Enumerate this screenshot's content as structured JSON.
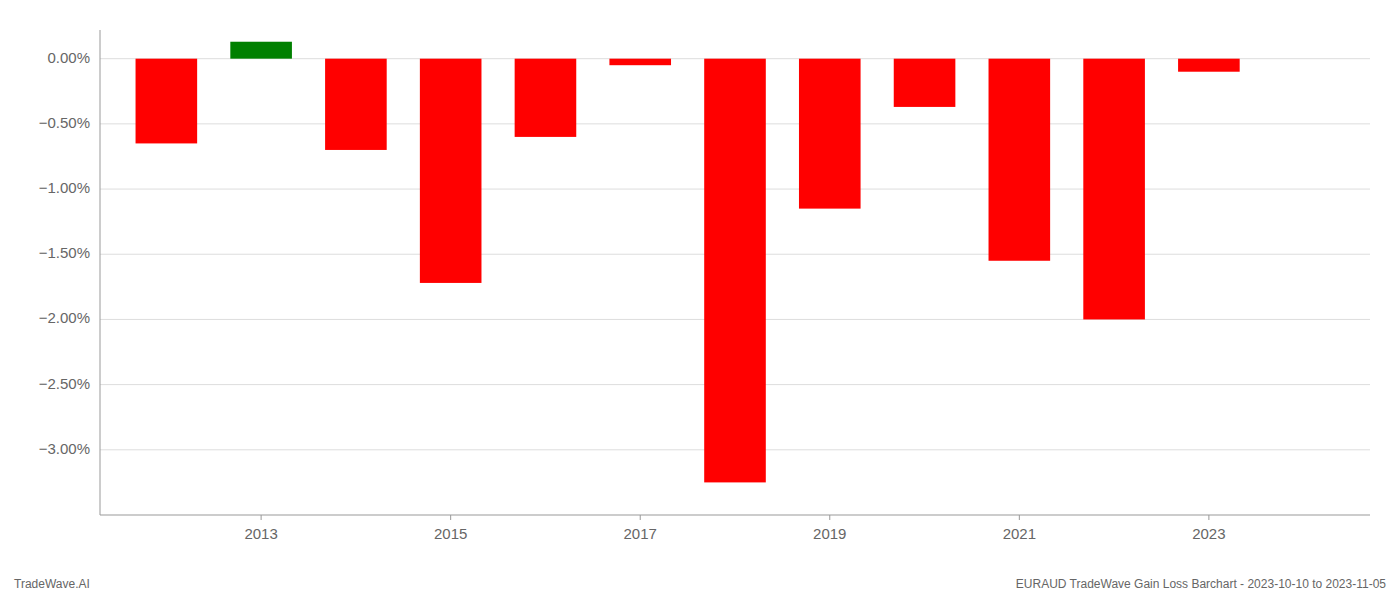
{
  "chart_data": {
    "type": "bar",
    "x": [
      2012,
      2013,
      2014,
      2015,
      2016,
      2017,
      2018,
      2019,
      2020,
      2021,
      2022,
      2023
    ],
    "values": [
      -0.65,
      0.13,
      -0.7,
      -1.72,
      -0.6,
      -0.05,
      -3.25,
      -1.15,
      -0.37,
      -1.55,
      -2.0,
      -0.1
    ],
    "colors": [
      "#ff0000",
      "#008000",
      "#ff0000",
      "#ff0000",
      "#ff0000",
      "#ff0000",
      "#ff0000",
      "#ff0000",
      "#ff0000",
      "#ff0000",
      "#ff0000",
      "#ff0000"
    ],
    "xlim": [
      2011.3,
      2024.7
    ],
    "xticks": [
      2013,
      2015,
      2017,
      2019,
      2021,
      2023
    ],
    "ylim": [
      -3.5,
      0.22
    ],
    "yticks": [
      {
        "value": 0.0,
        "label": "0.00%"
      },
      {
        "value": -0.5,
        "label": "−0.50%"
      },
      {
        "value": -1.0,
        "label": "−1.00%"
      },
      {
        "value": -1.5,
        "label": "−1.50%"
      },
      {
        "value": -2.0,
        "label": "−2.00%"
      },
      {
        "value": -2.5,
        "label": "−2.50%"
      },
      {
        "value": -3.0,
        "label": "−3.00%"
      }
    ],
    "grid": true,
    "annotations": [
      "TradeWave.AI",
      "EURAUD TradeWave Gain Loss Barchart - 2023-10-10 to 2023-11-05"
    ]
  }
}
